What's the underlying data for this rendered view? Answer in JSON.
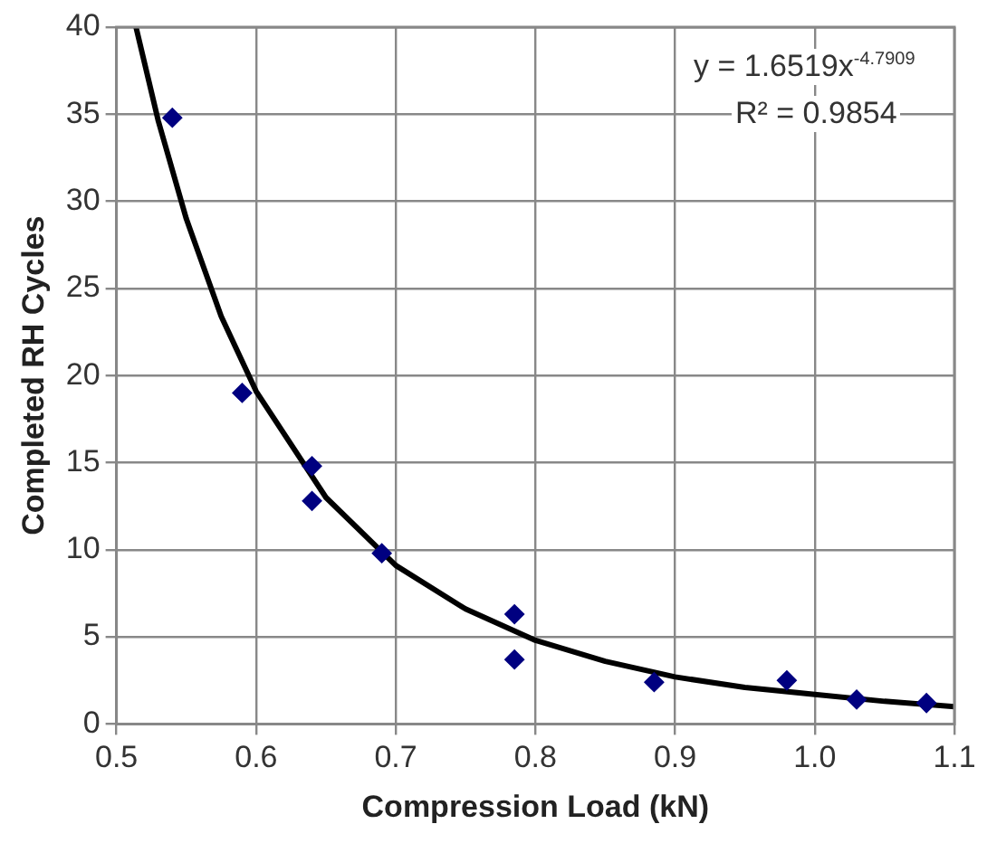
{
  "chart_data": {
    "type": "scatter",
    "xlabel": "Compression Load (kN)",
    "ylabel": "Completed RH Cycles",
    "xlim": [
      0.5,
      1.1
    ],
    "xticks": [
      {
        "value": 0.5,
        "label": "0.5"
      },
      {
        "value": 0.6,
        "label": "0.6"
      },
      {
        "value": 0.7,
        "label": "0.7"
      },
      {
        "value": 0.8,
        "label": "0.8"
      },
      {
        "value": 0.9,
        "label": "0.9"
      },
      {
        "value": 1.0,
        "label": "1.0"
      },
      {
        "value": 1.1,
        "label": "1.1"
      }
    ],
    "ylim": [
      0,
      40
    ],
    "yticks": [
      0,
      5,
      10,
      15,
      20,
      25,
      30,
      35,
      40
    ],
    "grid": true,
    "legend": false,
    "annotations": [
      "y = 1.6519x$^{-4.7909}$",
      "R² = 0.9854"
    ],
    "series": [
      {
        "color": "#000080",
        "marker": "diamond",
        "x": [
          0.54,
          0.59,
          0.64,
          0.64,
          0.69,
          0.785,
          0.785,
          0.885,
          0.98,
          1.03,
          1.08
        ],
        "values": [
          34.8,
          19,
          14.8,
          12.8,
          9.8,
          6.3,
          3.7,
          2.4,
          2.5,
          1.4,
          1.2
        ]
      },
      {
        "type": "line",
        "color": "#000000",
        "marker": "none",
        "x": [
          0.514,
          0.53,
          0.55,
          0.575,
          0.6,
          0.65,
          0.7,
          0.75,
          0.8,
          0.85,
          0.9,
          0.95,
          1.0,
          1.05,
          1.1
        ],
        "values": [
          40,
          34.6,
          29,
          23.4,
          19.1,
          13,
          9.1,
          6.6,
          4.8,
          3.6,
          2.7,
          2.1,
          1.7,
          1.3,
          1.0
        ]
      }
    ]
  }
}
